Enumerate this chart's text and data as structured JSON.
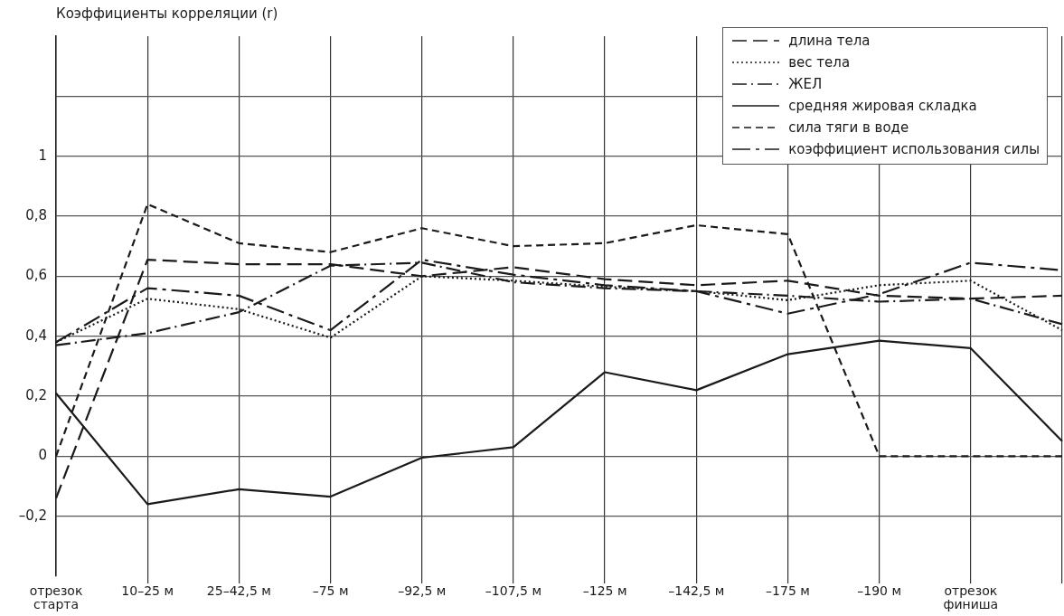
{
  "chart_data": {
    "type": "line",
    "ylabel": "Коэффициенты корреляции (r)",
    "categories": [
      "отрезок старта",
      "10–25 м",
      "25–42,5 м",
      "–75 м",
      "–92,5 м",
      "–107,5 м",
      "–125 м",
      "–142,5 м",
      "–175 м",
      "–190 м",
      "отрезок финиша",
      null
    ],
    "ylim": [
      -0.4,
      1.4
    ],
    "yticks": [
      {
        "value": -0.2,
        "label": "–0,2"
      },
      0,
      {
        "value": 0.2,
        "label": "0,2"
      },
      {
        "value": 0.4,
        "label": "0,4"
      },
      {
        "value": 0.6,
        "label": "0,6"
      },
      {
        "value": 0.8,
        "label": "0,8"
      },
      1,
      {
        "value": 1.2,
        "label": null
      }
    ],
    "grid": true,
    "legend": "top right",
    "marker": "none",
    "series": [
      {
        "name": "длина тела",
        "color": "#1a1a1a",
        "line_style": "longdash",
        "values": [
          -0.14,
          0.655,
          0.64,
          0.64,
          0.6,
          0.63,
          0.59,
          0.57,
          0.585,
          0.535,
          0.525,
          0.535
        ]
      },
      {
        "name": "вес тела",
        "color": "#1a1a1a",
        "line_style": "dotted",
        "values": [
          0.38,
          0.525,
          0.49,
          0.395,
          0.6,
          0.585,
          0.565,
          0.55,
          0.52,
          0.57,
          0.585,
          0.42
        ]
      },
      {
        "name": "ЖЕЛ",
        "color": "#1a1a1a",
        "line_style": "dashdot",
        "values": [
          0.37,
          0.41,
          0.48,
          0.635,
          0.645,
          0.58,
          0.56,
          0.55,
          0.535,
          0.515,
          0.525,
          0.44
        ]
      },
      {
        "name": "средняя жировая складка",
        "color": "#1a1a1a",
        "line_style": "solid",
        "values": [
          0.21,
          -0.16,
          -0.11,
          -0.135,
          -0.005,
          0.03,
          0.28,
          0.22,
          0.34,
          0.385,
          0.36,
          0.05
        ]
      },
      {
        "name": "сила тяги в воде",
        "color": "#1a1a1a",
        "line_style": "dashed",
        "values": [
          0,
          0.84,
          0.71,
          0.68,
          0.76,
          0.7,
          0.71,
          0.77,
          0.74,
          0,
          0,
          0
        ]
      },
      {
        "name": "коэффициент использования силы",
        "color": "#1a1a1a",
        "line_style": "longdashdot",
        "values": [
          0.38,
          0.56,
          0.535,
          0.42,
          0.655,
          0.605,
          0.57,
          0.55,
          0.475,
          0.54,
          0.645,
          0.62
        ]
      }
    ]
  }
}
